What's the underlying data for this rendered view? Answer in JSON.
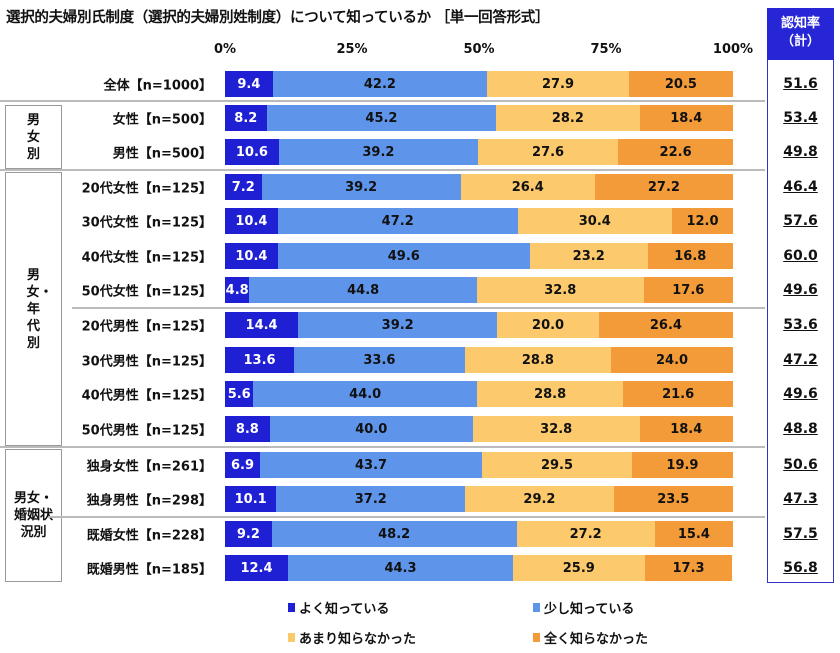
{
  "chart_data": {
    "type": "bar",
    "orientation": "horizontal-stacked-100",
    "title": "選択的夫婦別氏制度（選択的夫婦別姓制度）について知っているか ［単一回答形式］",
    "xlim": [
      0,
      100
    ],
    "x_ticks": [
      "0%",
      "25%",
      "50%",
      "75%",
      "100%"
    ],
    "groups": [
      {
        "label": "男女別",
        "rows": [
          1,
          2
        ]
      },
      {
        "label": "男女・年代別",
        "rows": [
          3,
          4,
          5,
          6,
          7,
          8,
          9,
          10
        ]
      },
      {
        "label": "男女・婚姻状況別",
        "rows": [
          11,
          12,
          13,
          14
        ]
      }
    ],
    "categories": [
      "全体【n=1000】",
      "女性【n=500】",
      "男性【n=500】",
      "20代女性【n=125】",
      "30代女性【n=125】",
      "40代女性【n=125】",
      "50代女性【n=125】",
      "20代男性【n=125】",
      "30代男性【n=125】",
      "40代男性【n=125】",
      "50代男性【n=125】",
      "独身女性【n=261】",
      "独身男性【n=298】",
      "既婚女性【n=228】",
      "既婚男性【n=185】"
    ],
    "series": [
      {
        "name": "よく知っている",
        "color": "#1f1fd3",
        "label_color": "#ffffff",
        "values": [
          9.4,
          8.2,
          10.6,
          7.2,
          10.4,
          10.4,
          4.8,
          14.4,
          13.6,
          5.6,
          8.8,
          6.9,
          10.1,
          9.2,
          12.4
        ]
      },
      {
        "name": "少し知っている",
        "color": "#5e95ea",
        "label_color": "#111111",
        "values": [
          42.2,
          45.2,
          39.2,
          39.2,
          47.2,
          49.6,
          44.8,
          39.2,
          33.6,
          44.0,
          40.0,
          43.7,
          37.2,
          48.2,
          44.3
        ]
      },
      {
        "name": "あまり知らなかった",
        "color": "#fcca6c",
        "label_color": "#111111",
        "values": [
          27.9,
          28.2,
          27.6,
          26.4,
          30.4,
          23.2,
          32.8,
          20.0,
          28.8,
          28.8,
          32.8,
          29.5,
          29.2,
          27.2,
          25.9
        ]
      },
      {
        "name": "全く知らなかった",
        "color": "#f39b38",
        "label_color": "#111111",
        "values": [
          20.5,
          18.4,
          22.6,
          27.2,
          12.0,
          16.8,
          17.6,
          26.4,
          24.0,
          21.6,
          18.4,
          19.9,
          23.5,
          15.4,
          17.3
        ]
      }
    ],
    "awareness": {
      "header": "認知率",
      "header_sub": "（計）",
      "values": [
        "51.6",
        "53.4",
        "49.8",
        "46.4",
        "57.6",
        "60.0",
        "49.6",
        "53.6",
        "47.2",
        "49.6",
        "48.8",
        "50.6",
        "47.3",
        "57.5",
        "56.8"
      ]
    },
    "legend": "bottom"
  }
}
